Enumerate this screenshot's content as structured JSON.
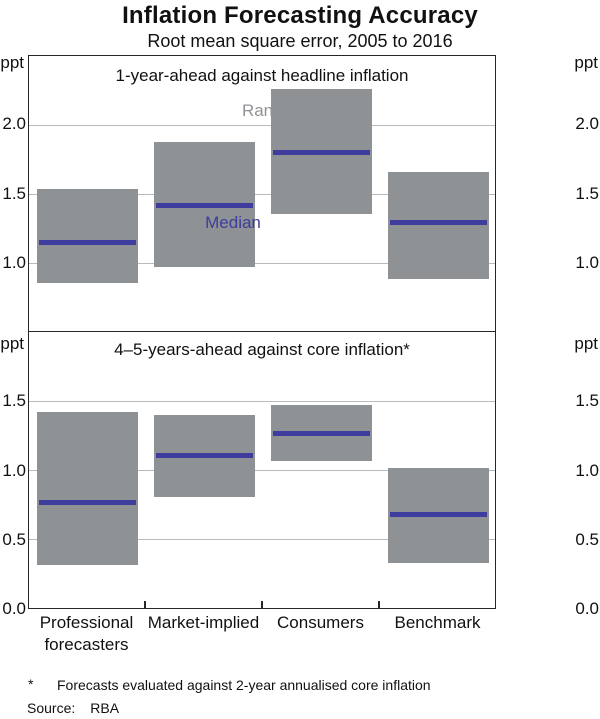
{
  "title": "Inflation Forecasting Accuracy",
  "subtitle": "Root mean square error, 2005 to 2016",
  "unit_label": "ppt",
  "colors": {
    "range_fill": "#8f9294",
    "median_line": "#3e3c9c",
    "gridline": "#b9babb",
    "panel_border": "#262626",
    "range_label_text": "#909396",
    "median_label_text": "#3e3c9c"
  },
  "categories": [
    {
      "lines": [
        "Professional",
        "forecasters"
      ]
    },
    {
      "lines": [
        "Market-implied"
      ]
    },
    {
      "lines": [
        "Consumers"
      ]
    },
    {
      "lines": [
        "Benchmark"
      ]
    }
  ],
  "chart_data": [
    {
      "type": "range-bar",
      "panel_title": "1-year-ahead against headline inflation",
      "ylabel": "ppt",
      "ylim": [
        0.5,
        2.5
      ],
      "yticks": [
        "1.0",
        "1.5",
        "2.0"
      ],
      "grid": true,
      "categories": [
        "Professional forecasters",
        "Market-implied",
        "Consumers",
        "Benchmark"
      ],
      "series": [
        {
          "name": "Range",
          "values": [
            [
              0.86,
              1.54
            ],
            [
              0.98,
              1.88
            ],
            [
              1.36,
              2.26
            ],
            [
              0.89,
              1.66
            ]
          ]
        },
        {
          "name": "Median",
          "values": [
            1.15,
            1.42,
            1.8,
            1.3
          ]
        }
      ],
      "annotations": [
        {
          "text": "Range",
          "color_key": "range_label_text",
          "x": 239,
          "y": 56
        },
        {
          "text": "Median",
          "color_key": "median_label_text",
          "x": 205,
          "y": 168
        }
      ]
    },
    {
      "type": "range-bar",
      "panel_title": "4–5-years-ahead against core inflation*",
      "ylabel": "ppt",
      "ylim": [
        0.0,
        2.0
      ],
      "yticks": [
        "0.0",
        "0.5",
        "1.0",
        "1.5"
      ],
      "grid": true,
      "categories": [
        "Professional forecasters",
        "Market-implied",
        "Consumers",
        "Benchmark"
      ],
      "series": [
        {
          "name": "Range",
          "values": [
            [
              0.32,
              1.42
            ],
            [
              0.81,
              1.4
            ],
            [
              1.07,
              1.47
            ],
            [
              0.33,
              1.02
            ]
          ]
        },
        {
          "name": "Median",
          "values": [
            0.77,
            1.11,
            1.27,
            0.68
          ]
        }
      ],
      "annotations": []
    }
  ],
  "footnote": {
    "marker": "*",
    "text": "Forecasts evaluated against 2-year annualised core inflation"
  },
  "source": {
    "label": "Source:",
    "value": "RBA"
  }
}
